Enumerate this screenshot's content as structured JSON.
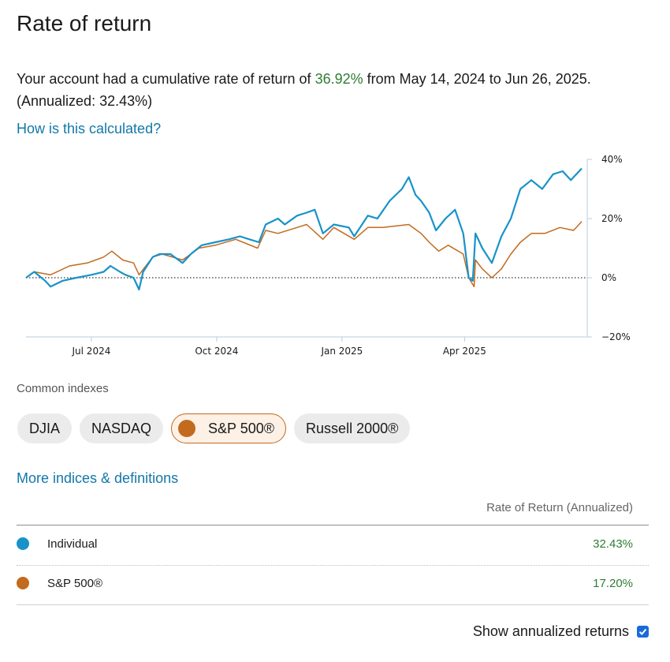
{
  "page": {
    "title": "Rate of return",
    "summary_prefix": "Your account had a cumulative rate of return of ",
    "summary_return": "36.92%",
    "summary_suffix": " from May 14, 2024 to Jun 26, 2025. (Annualized: 32.43%)",
    "calc_link": "How is this calculated?",
    "indexes_label": "Common indexes",
    "more_link": "More indices & definitions",
    "table_header": "Rate of Return (Annualized)",
    "annualized_label": "Show annualized returns"
  },
  "chips": [
    {
      "label": "DJIA",
      "active": false
    },
    {
      "label": "NASDAQ",
      "active": false
    },
    {
      "label": "S&P 500®",
      "active": true
    },
    {
      "label": "Russell 2000®",
      "active": false
    }
  ],
  "legend_rows": [
    {
      "name": "Individual",
      "value": "32.43%",
      "color": "#1992c9"
    },
    {
      "name": "S&P 500®",
      "value": "17.20%",
      "color": "#c26a1d"
    }
  ],
  "colors": {
    "individual": "#1992c9",
    "sp500": "#c26a1d",
    "positive": "#2e7d32",
    "link": "#1278a8"
  },
  "chart_data": {
    "type": "line",
    "x_start": "2024-05-14",
    "x_end": "2025-06-26",
    "y_tick_labels": [
      "40%",
      "20%",
      "0%",
      "−20%"
    ],
    "y_ticks": [
      40,
      20,
      0,
      -20
    ],
    "ylim": [
      -20,
      40
    ],
    "x_tick_labels": [
      "Jul 2024",
      "Oct 2024",
      "Jan 2025",
      "Apr 2025"
    ],
    "x_ticks": [
      "2024-07-01",
      "2024-10-01",
      "2025-01-01",
      "2025-04-01"
    ],
    "zero_line": "dotted",
    "series": [
      {
        "name": "Individual",
        "color": "#1992c9",
        "points": [
          [
            "2024-05-14",
            0
          ],
          [
            "2024-05-20",
            2
          ],
          [
            "2024-05-28",
            -1
          ],
          [
            "2024-06-01",
            -3
          ],
          [
            "2024-06-10",
            -1
          ],
          [
            "2024-06-20",
            0
          ],
          [
            "2024-07-01",
            1
          ],
          [
            "2024-07-10",
            2
          ],
          [
            "2024-07-15",
            4
          ],
          [
            "2024-07-22",
            2
          ],
          [
            "2024-07-26",
            1
          ],
          [
            "2024-08-01",
            0
          ],
          [
            "2024-08-05",
            -4
          ],
          [
            "2024-08-08",
            2
          ],
          [
            "2024-08-15",
            7
          ],
          [
            "2024-08-20",
            8
          ],
          [
            "2024-08-28",
            8
          ],
          [
            "2024-09-06",
            5
          ],
          [
            "2024-09-12",
            8
          ],
          [
            "2024-09-20",
            11
          ],
          [
            "2024-09-30",
            12
          ],
          [
            "2024-10-10",
            13
          ],
          [
            "2024-10-18",
            14
          ],
          [
            "2024-10-25",
            13
          ],
          [
            "2024-11-01",
            12
          ],
          [
            "2024-11-06",
            18
          ],
          [
            "2024-11-15",
            20
          ],
          [
            "2024-11-20",
            18
          ],
          [
            "2024-11-29",
            21
          ],
          [
            "2024-12-06",
            22
          ],
          [
            "2024-12-12",
            23
          ],
          [
            "2024-12-18",
            15
          ],
          [
            "2024-12-26",
            18
          ],
          [
            "2025-01-06",
            17
          ],
          [
            "2025-01-10",
            14
          ],
          [
            "2025-01-20",
            21
          ],
          [
            "2025-01-27",
            20
          ],
          [
            "2025-02-05",
            26
          ],
          [
            "2025-02-14",
            30
          ],
          [
            "2025-02-19",
            34
          ],
          [
            "2025-02-24",
            28
          ],
          [
            "2025-02-28",
            26
          ],
          [
            "2025-03-06",
            22
          ],
          [
            "2025-03-11",
            16
          ],
          [
            "2025-03-18",
            20
          ],
          [
            "2025-03-25",
            23
          ],
          [
            "2025-03-31",
            15
          ],
          [
            "2025-04-04",
            0
          ],
          [
            "2025-04-07",
            -1
          ],
          [
            "2025-04-09",
            15
          ],
          [
            "2025-04-14",
            10
          ],
          [
            "2025-04-21",
            5
          ],
          [
            "2025-04-28",
            14
          ],
          [
            "2025-05-05",
            20
          ],
          [
            "2025-05-12",
            30
          ],
          [
            "2025-05-20",
            33
          ],
          [
            "2025-05-28",
            30
          ],
          [
            "2025-06-05",
            35
          ],
          [
            "2025-06-12",
            36
          ],
          [
            "2025-06-18",
            33
          ],
          [
            "2025-06-26",
            36.92
          ]
        ]
      },
      {
        "name": "S&P 500®",
        "color": "#c26a1d",
        "points": [
          [
            "2024-05-14",
            0
          ],
          [
            "2024-05-20",
            2
          ],
          [
            "2024-06-01",
            1
          ],
          [
            "2024-06-15",
            4
          ],
          [
            "2024-06-28",
            5
          ],
          [
            "2024-07-10",
            7
          ],
          [
            "2024-07-16",
            9
          ],
          [
            "2024-07-24",
            6
          ],
          [
            "2024-08-01",
            5
          ],
          [
            "2024-08-05",
            1
          ],
          [
            "2024-08-10",
            4
          ],
          [
            "2024-08-15",
            7
          ],
          [
            "2024-08-22",
            8
          ],
          [
            "2024-09-06",
            6
          ],
          [
            "2024-09-18",
            10
          ],
          [
            "2024-09-30",
            11
          ],
          [
            "2024-10-15",
            13
          ],
          [
            "2024-10-31",
            10
          ],
          [
            "2024-11-06",
            16
          ],
          [
            "2024-11-15",
            15
          ],
          [
            "2024-11-29",
            17
          ],
          [
            "2024-12-06",
            18
          ],
          [
            "2024-12-18",
            13
          ],
          [
            "2024-12-26",
            17
          ],
          [
            "2025-01-10",
            13
          ],
          [
            "2025-01-20",
            17
          ],
          [
            "2025-01-31",
            17
          ],
          [
            "2025-02-19",
            18
          ],
          [
            "2025-02-28",
            15
          ],
          [
            "2025-03-06",
            12
          ],
          [
            "2025-03-13",
            9
          ],
          [
            "2025-03-20",
            11
          ],
          [
            "2025-03-31",
            8
          ],
          [
            "2025-04-04",
            0
          ],
          [
            "2025-04-08",
            -3
          ],
          [
            "2025-04-09",
            6
          ],
          [
            "2025-04-14",
            3
          ],
          [
            "2025-04-21",
            0
          ],
          [
            "2025-04-28",
            3
          ],
          [
            "2025-05-05",
            8
          ],
          [
            "2025-05-12",
            12
          ],
          [
            "2025-05-20",
            15
          ],
          [
            "2025-05-30",
            15
          ],
          [
            "2025-06-10",
            17
          ],
          [
            "2025-06-20",
            16
          ],
          [
            "2025-06-26",
            19
          ]
        ]
      }
    ]
  }
}
